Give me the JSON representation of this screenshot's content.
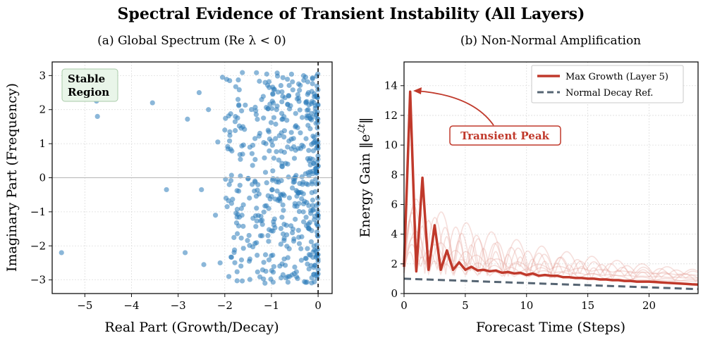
{
  "figure": {
    "title": "Spectral Evidence of Transient Instability (All Layers)"
  },
  "chart_data": [
    {
      "type": "scatter",
      "title": "(a) Global Spectrum (Re λ < 0)",
      "xlabel": "Real Part (Growth/Decay)",
      "ylabel": "Imaginary Part (Frequency)",
      "xlim": [
        -5.7,
        0.3
      ],
      "ylim": [
        -3.4,
        3.4
      ],
      "xticks": [
        -5,
        -4,
        -3,
        -2,
        -1,
        0
      ],
      "yticks": [
        -3,
        -2,
        -1,
        0,
        1,
        2,
        3
      ],
      "grid": true,
      "point_color": "#2b7bba",
      "annotation": "Stable\nRegion",
      "reference_lines": [
        {
          "axis": "x",
          "value": 0,
          "style": "dashed"
        },
        {
          "axis": "y",
          "value": 0,
          "style": "solid-gray"
        }
      ],
      "outlier_points": [
        {
          "x": -5.5,
          "y": -2.2
        },
        {
          "x": -4.75,
          "y": 2.25
        },
        {
          "x": -4.73,
          "y": 1.8
        },
        {
          "x": -3.55,
          "y": 2.2
        },
        {
          "x": -3.25,
          "y": -0.35
        },
        {
          "x": -2.85,
          "y": -2.2
        },
        {
          "x": -2.8,
          "y": 1.72
        },
        {
          "x": -2.55,
          "y": 2.5
        },
        {
          "x": -2.5,
          "y": -0.35
        },
        {
          "x": -2.45,
          "y": -2.55
        },
        {
          "x": -2.35,
          "y": 2.0
        },
        {
          "x": -2.2,
          "y": -1.1
        },
        {
          "x": -2.15,
          "y": 1.05
        },
        {
          "x": -2.1,
          "y": -2.5
        },
        {
          "x": -2.05,
          "y": 2.95
        },
        {
          "x": -2.0,
          "y": 1.4
        },
        {
          "x": -1.95,
          "y": -0.85
        }
      ],
      "cluster": {
        "count": 520,
        "x_range": [
          -2.0,
          0.0
        ],
        "y_range": [
          -3.1,
          3.1
        ],
        "density": "increasing toward 0"
      }
    },
    {
      "type": "line",
      "title": "(b) Non-Normal Amplification",
      "xlabel": "Forecast Time (Steps)",
      "ylabel": "Energy Gain ‖e^{ℒt}‖",
      "xlim": [
        0,
        24
      ],
      "ylim": [
        0,
        15.6
      ],
      "xticks": [
        0,
        5,
        10,
        15,
        20
      ],
      "yticks": [
        0,
        2,
        4,
        6,
        8,
        10,
        12,
        14
      ],
      "grid": true,
      "legend_position": "top-right",
      "annotation": "Transient Peak",
      "annotation_point": {
        "x": 0.5,
        "y": 13.6
      },
      "series": [
        {
          "name": "Max Growth (Layer 5)",
          "color": "#c0392b",
          "x": [
            0,
            0.5,
            1,
            1.5,
            2,
            2.5,
            3,
            3.5,
            4,
            4.5,
            5,
            5.5,
            6,
            6.5,
            7,
            7.5,
            8,
            8.5,
            9,
            9.5,
            10,
            10.5,
            11,
            11.5,
            12,
            12.5,
            13,
            13.5,
            14,
            14.5,
            15,
            15.5,
            16,
            16.5,
            17,
            17.5,
            18,
            18.5,
            19,
            19.5,
            20,
            20.5,
            21,
            21.5,
            22,
            22.5,
            23,
            23.5,
            24
          ],
          "y": [
            1.8,
            13.6,
            1.5,
            7.8,
            1.6,
            4.6,
            1.6,
            2.9,
            1.6,
            2.1,
            1.6,
            1.8,
            1.55,
            1.6,
            1.5,
            1.55,
            1.4,
            1.45,
            1.35,
            1.4,
            1.25,
            1.35,
            1.2,
            1.25,
            1.2,
            1.2,
            1.1,
            1.1,
            1.05,
            1.05,
            1.0,
            1.0,
            0.95,
            0.95,
            0.9,
            0.9,
            0.85,
            0.85,
            0.8,
            0.8,
            0.8,
            0.78,
            0.75,
            0.72,
            0.7,
            0.68,
            0.65,
            0.62,
            0.6
          ]
        },
        {
          "name": "Normal Decay Ref.",
          "color": "#566573",
          "style": "dashed",
          "x": [
            0,
            24
          ],
          "y": [
            1.0,
            0.3
          ]
        }
      ],
      "background_series_count": 8
    }
  ]
}
